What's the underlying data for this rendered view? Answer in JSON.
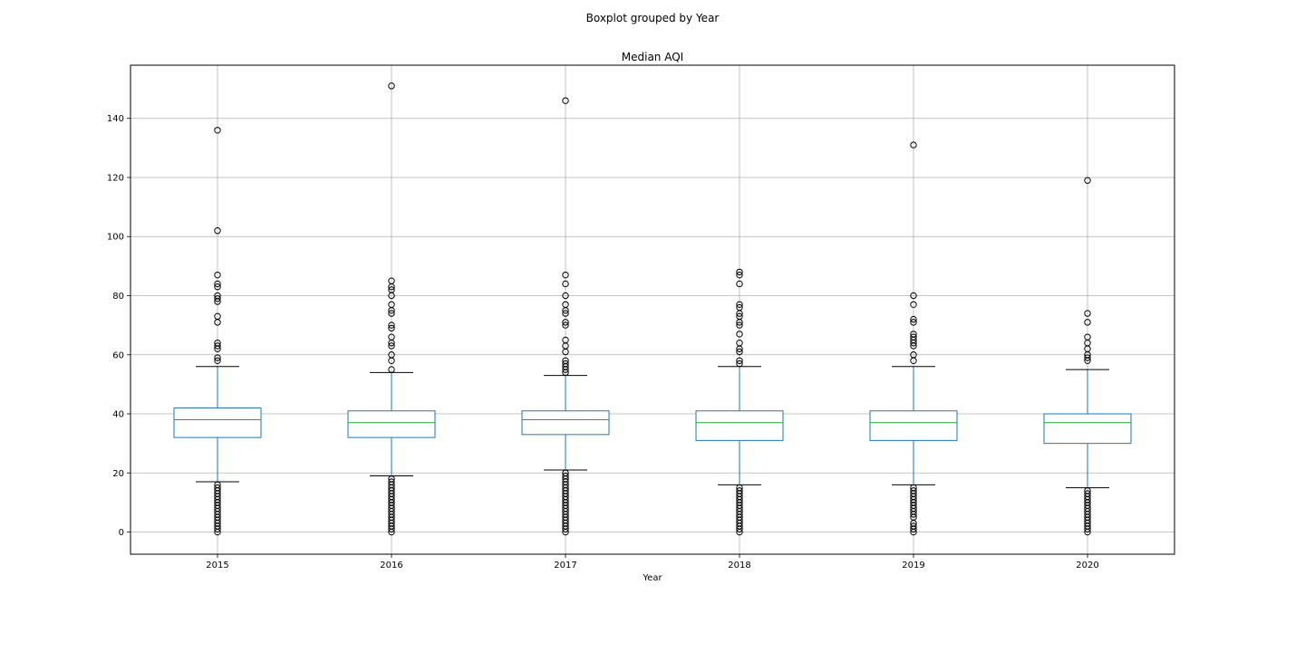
{
  "chart_data": {
    "type": "boxplot",
    "suptitle": "Boxplot grouped by Year",
    "title": "Median AQI",
    "xlabel": "Year",
    "ylabel": "",
    "ylim": [
      -7.5,
      158
    ],
    "yticks": [
      0,
      20,
      40,
      60,
      80,
      100,
      120,
      140
    ],
    "grid": true,
    "colors": {
      "box": "#1f77b4",
      "median": "#2ca02c",
      "whisker": "#1f77b4",
      "cap": "#000000",
      "flier": "#000000",
      "grid": "#b0b0b0"
    },
    "categories": [
      "2015",
      "2016",
      "2017",
      "2018",
      "2019",
      "2020"
    ],
    "boxes": [
      {
        "year": "2015",
        "whisker_low": 17,
        "q1": 32,
        "median": 38,
        "q3": 42,
        "whisker_high": 56,
        "outliers": [
          136,
          102,
          87,
          84,
          83,
          80,
          79,
          78,
          73,
          71,
          64,
          63,
          62,
          59,
          58,
          16,
          15,
          14,
          13,
          12,
          11,
          10,
          9,
          8,
          7,
          6,
          5,
          4,
          3,
          2,
          1,
          0
        ]
      },
      {
        "year": "2016",
        "whisker_low": 19,
        "q1": 32,
        "median": 37,
        "q3": 41,
        "whisker_high": 54,
        "outliers": [
          151,
          85,
          83,
          82,
          80,
          77,
          75,
          74,
          70,
          69,
          66,
          64,
          63,
          60,
          58,
          55,
          18,
          17,
          16,
          15,
          14,
          13,
          12,
          11,
          10,
          9,
          8,
          7,
          6,
          5,
          4,
          3,
          2,
          1,
          0
        ]
      },
      {
        "year": "2017",
        "whisker_low": 21,
        "q1": 33,
        "median": 38,
        "q3": 41,
        "whisker_high": 53,
        "outliers": [
          146,
          87,
          84,
          80,
          77,
          75,
          74,
          71,
          70,
          65,
          63,
          61,
          58,
          57,
          56,
          55,
          54,
          20,
          19,
          18,
          17,
          16,
          15,
          14,
          13,
          12,
          11,
          10,
          9,
          8,
          7,
          6,
          5,
          4,
          3,
          2,
          1,
          0
        ]
      },
      {
        "year": "2018",
        "whisker_low": 16,
        "q1": 31,
        "median": 37,
        "q3": 41,
        "whisker_high": 56,
        "outliers": [
          88,
          87,
          84,
          77,
          76,
          74,
          73,
          71,
          70,
          67,
          64,
          62,
          61,
          58,
          57,
          15,
          14,
          13,
          12,
          11,
          10,
          9,
          8,
          7,
          6,
          5,
          4,
          3,
          2,
          1,
          0
        ]
      },
      {
        "year": "2019",
        "whisker_low": 16,
        "q1": 31,
        "median": 37,
        "q3": 41,
        "whisker_high": 56,
        "outliers": [
          131,
          80,
          77,
          72,
          71,
          67,
          66,
          65,
          64,
          63,
          60,
          58,
          15,
          14,
          13,
          12,
          11,
          10,
          9,
          8,
          7,
          6,
          5,
          3,
          2,
          1,
          0
        ]
      },
      {
        "year": "2020",
        "whisker_low": 15,
        "q1": 30,
        "median": 37,
        "q3": 40,
        "whisker_high": 55,
        "outliers": [
          119,
          74,
          71,
          66,
          64,
          62,
          60,
          59,
          58,
          14,
          13,
          12,
          11,
          10,
          9,
          8,
          7,
          6,
          5,
          4,
          3,
          2,
          1,
          0
        ]
      }
    ]
  }
}
